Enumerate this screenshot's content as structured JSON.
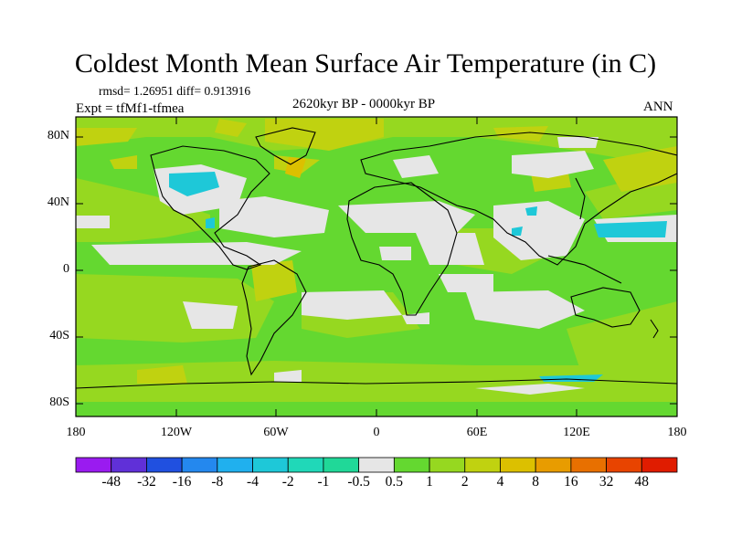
{
  "title": "Coldest Month Mean Surface Air Temperature (in C)",
  "stats": {
    "rmsd_line": "rmsd= 1.26951 diff= 0.913916",
    "expt_line": "Expt = tfMf1-tfmea"
  },
  "subtitle": {
    "center": "2620kyr BP - 0000kyr BP",
    "right": "ANN"
  },
  "axes": {
    "lat_labels": [
      "80N",
      "40N",
      "0",
      "40S",
      "80S"
    ],
    "lon_labels": [
      "180",
      "120W",
      "60W",
      "0",
      "60E",
      "120E",
      "180"
    ]
  },
  "colorbar": {
    "labels": [
      "-48",
      "-32",
      "-16",
      "-8",
      "-4",
      "-2",
      "-1",
      "-0.5",
      "0.5",
      "1",
      "2",
      "4",
      "8",
      "16",
      "32",
      "48"
    ],
    "colors": [
      "#9a1bf0",
      "#6030d8",
      "#2050e0",
      "#2488ee",
      "#20b0ee",
      "#1ec8d8",
      "#20d8b8",
      "#20d898",
      "#e6e6e6",
      "#64d830",
      "#96d820",
      "#c0d210",
      "#dcc000",
      "#e89c00",
      "#e87000",
      "#e84400",
      "#e01c00"
    ]
  },
  "palette": {
    "ocean_base": "#64d830",
    "near_zero": "#e6e6e6",
    "warm_1": "#96d820",
    "warm_2": "#c0d210",
    "warm_3": "#dcc000",
    "cool_1": "#20d8b8",
    "cool_2": "#1ec8d8"
  }
}
